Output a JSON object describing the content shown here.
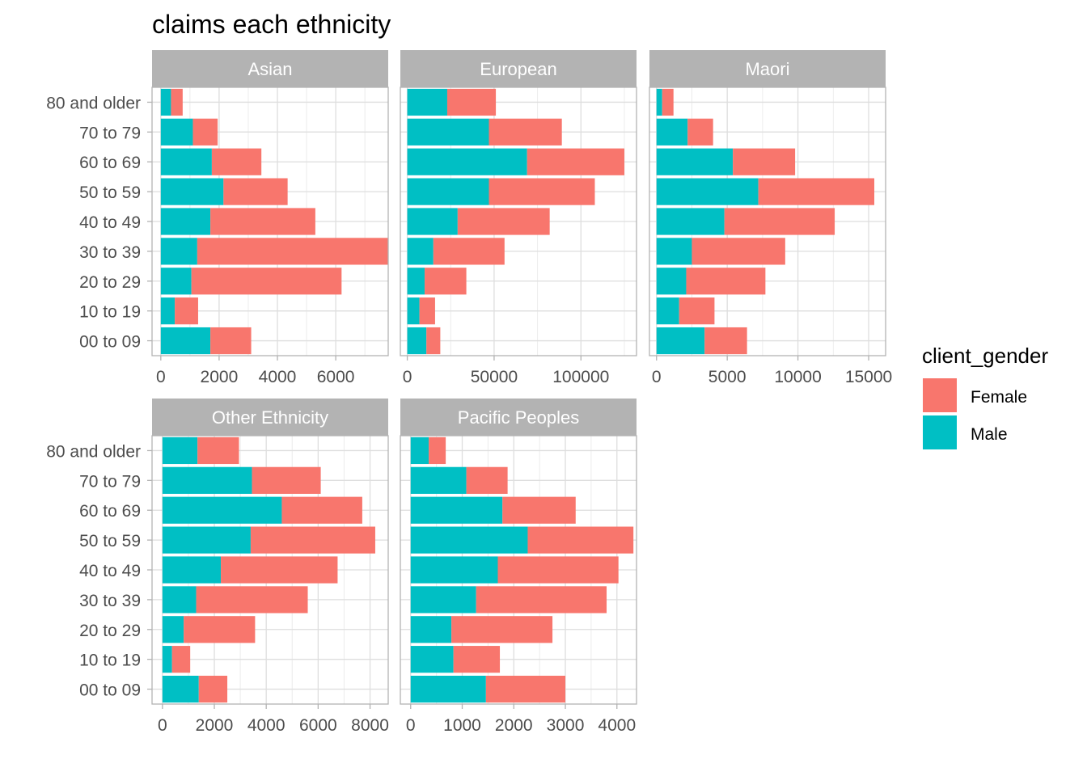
{
  "title": "claims each ethnicity",
  "legend": {
    "title": "client_gender",
    "entries": [
      {
        "label": "Female",
        "color": "#F8766D"
      },
      {
        "label": "Male",
        "color": "#00BFC4"
      }
    ]
  },
  "chart_data": {
    "type": "bar",
    "orientation": "horizontal",
    "stacked": true,
    "title": "claims each ethnicity",
    "legend_title": "client_gender",
    "legend_position": "right",
    "categories": [
      "80 and older",
      "70 to 79",
      "60 to 69",
      "50 to 59",
      "40 to 49",
      "30 to 39",
      "20 to 29",
      "10 to 19",
      "00 to 09"
    ],
    "series_names": [
      "Male",
      "Female"
    ],
    "series_colors": {
      "Male": "#00BFC4",
      "Female": "#F8766D"
    },
    "grid": true,
    "panels": [
      {
        "name": "Asian",
        "xlim": [
          -300,
          7800
        ],
        "xticks": [
          0,
          2000,
          4000,
          6000
        ],
        "xtick_labels": [
          "0",
          "2000",
          "4000",
          "6000"
        ],
        "series": [
          {
            "name": "Male",
            "values": [
              350,
              1100,
              1750,
              2150,
              1700,
              1250,
              1050,
              480,
              1700
            ]
          },
          {
            "name": "Female",
            "values": [
              400,
              850,
              1700,
              2200,
              3600,
              6550,
              5150,
              800,
              1400
            ]
          }
        ]
      },
      {
        "name": "European",
        "xlim": [
          -4000,
          132000
        ],
        "xticks": [
          0,
          50000,
          100000
        ],
        "xtick_labels": [
          "0",
          "50000",
          "100000"
        ],
        "series": [
          {
            "name": "Male",
            "values": [
              23000,
              47000,
              69000,
              47000,
              29000,
              15000,
              10000,
              7000,
              11000
            ]
          },
          {
            "name": "Female",
            "values": [
              28000,
              42000,
              56000,
              61000,
              53000,
              41000,
              24000,
              9000,
              8000
            ]
          }
        ]
      },
      {
        "name": "Maori",
        "xlim": [
          -500,
          16200
        ],
        "xticks": [
          0,
          5000,
          10000,
          15000
        ],
        "xtick_labels": [
          "0",
          "5000",
          "10000",
          "15000"
        ],
        "series": [
          {
            "name": "Male",
            "values": [
              400,
              2200,
              5400,
              7200,
              4800,
              2500,
              2100,
              1600,
              3400
            ]
          },
          {
            "name": "Female",
            "values": [
              800,
              1800,
              4400,
              8200,
              7800,
              6600,
              5600,
              2500,
              3000
            ]
          }
        ]
      },
      {
        "name": "Other Ethnicity",
        "xlim": [
          -400,
          8700
        ],
        "xticks": [
          0,
          2000,
          4000,
          6000,
          8000
        ],
        "xtick_labels": [
          "0",
          "2000",
          "4000",
          "6000",
          "8000"
        ],
        "series": [
          {
            "name": "Male",
            "values": [
              1350,
              3450,
              4600,
              3400,
              2250,
              1300,
              820,
              370,
              1400
            ]
          },
          {
            "name": "Female",
            "values": [
              1600,
              2650,
              3100,
              4800,
              4500,
              4300,
              2750,
              700,
              1100
            ]
          }
        ]
      },
      {
        "name": "Pacific Peoples",
        "xlim": [
          -200,
          4380
        ],
        "xticks": [
          0,
          1000,
          2000,
          3000,
          4000
        ],
        "xtick_labels": [
          "0",
          "1000",
          "2000",
          "3000",
          "4000"
        ],
        "series": [
          {
            "name": "Male",
            "values": [
              350,
              1080,
              1780,
              2270,
              1690,
              1270,
              790,
              830,
              1460
            ]
          },
          {
            "name": "Female",
            "values": [
              330,
              800,
              1420,
              2050,
              2340,
              2530,
              1960,
              900,
              1540
            ]
          }
        ]
      }
    ]
  }
}
